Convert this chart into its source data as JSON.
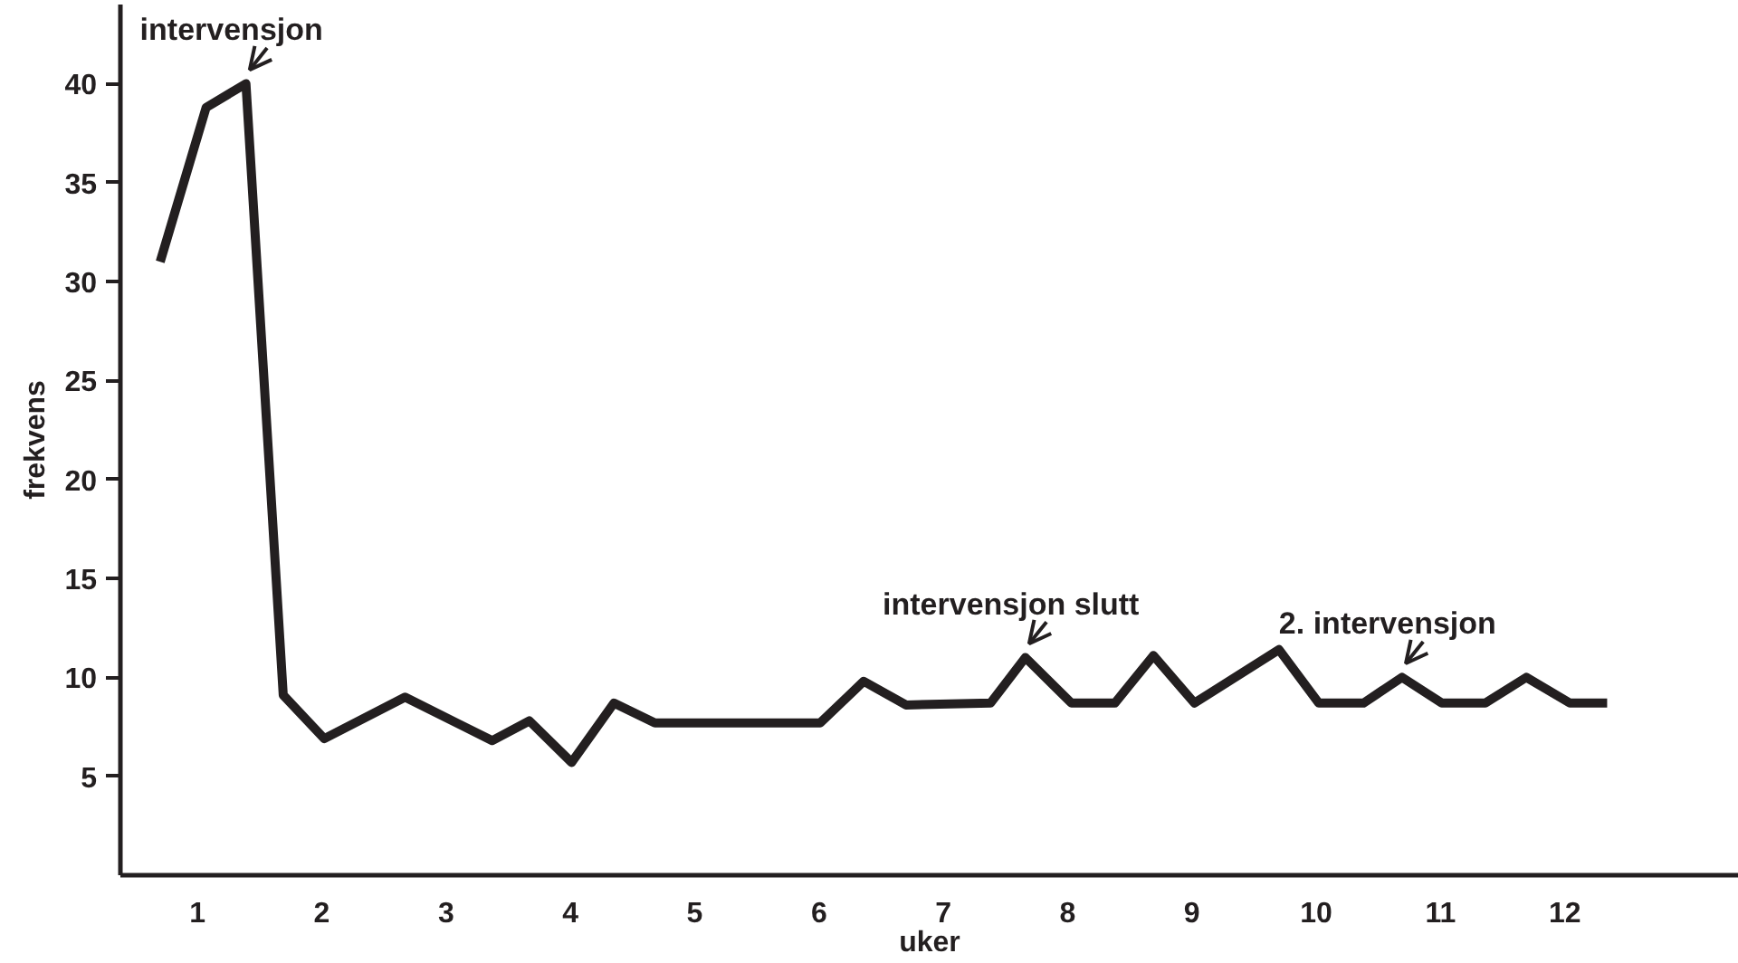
{
  "chart_data": {
    "type": "line",
    "xlabel": "uker",
    "ylabel": "frekvens",
    "x": [
      0.7,
      1.07,
      1.39,
      1.69,
      2.02,
      2.67,
      3.37,
      3.67,
      4.01,
      4.35,
      4.68,
      6.01,
      6.36,
      6.7,
      7.38,
      7.66,
      8.03,
      8.38,
      8.69,
      9.02,
      9.7,
      10.02,
      10.38,
      10.69,
      11.01,
      11.36,
      11.69,
      12.04,
      12.34
    ],
    "series": [
      {
        "color": "#231f20",
        "values": [
          31,
          38.8,
          40,
          9.1,
          6.9,
          9,
          6.8,
          7.8,
          5.7,
          8.7,
          7.7,
          7.7,
          9.8,
          8.6,
          8.7,
          11,
          8.7,
          8.7,
          11.1,
          8.7,
          11.4,
          8.7,
          8.7,
          10,
          8.7,
          8.7,
          10,
          8.7,
          8.7
        ]
      }
    ],
    "xlim": [
      0.38,
      13.4
    ],
    "ylim": [
      0,
      44
    ],
    "xticks": [
      1,
      2,
      3,
      4,
      5,
      6,
      7,
      8,
      9,
      10,
      11,
      12
    ],
    "yticks": [
      5,
      10,
      15,
      20,
      25,
      30,
      35,
      40
    ],
    "grid": false,
    "annotations": [
      {
        "text": "intervensjon",
        "x": 1.39,
        "y": 40
      },
      {
        "text": "intervensjon slutt",
        "x": 7.66,
        "y": 11
      },
      {
        "text": "2. intervensjon",
        "x": 10.69,
        "y": 10
      }
    ]
  }
}
